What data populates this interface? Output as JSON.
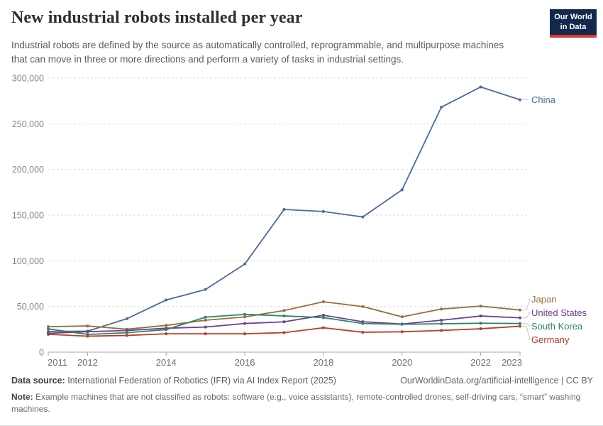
{
  "header": {
    "title": "New industrial robots installed per year",
    "subtitle": "Industrial robots are defined by the source as automatically controlled, reprogrammable, and multipurpose machines that can move in three or more directions and perform a variety of tasks in industrial settings.",
    "logo": {
      "line1": "Our World",
      "line2": "in Data",
      "bg_color": "#12294D",
      "accent_color": "#E0352B"
    }
  },
  "chart_data": {
    "type": "line",
    "title": "New industrial robots installed per year",
    "xlabel": "",
    "ylabel": "",
    "x": [
      2011,
      2012,
      2013,
      2014,
      2015,
      2016,
      2017,
      2018,
      2019,
      2020,
      2021,
      2022,
      2023
    ],
    "x_tick_labels": [
      2011,
      2012,
      2014,
      2016,
      2018,
      2020,
      2022,
      2023
    ],
    "ylim": [
      0,
      300000
    ],
    "ytick_step": 50000,
    "grid": "horizontal-dashed",
    "legend_position": "right-of-line-ends",
    "series": [
      {
        "name": "China",
        "color": "#4C6A9C",
        "values": [
          22600,
          23000,
          36600,
          57100,
          68600,
          96500,
          156200,
          154000,
          148000,
          177700,
          268200,
          290300,
          276300
        ]
      },
      {
        "name": "Japan",
        "color": "#996D39",
        "values": [
          27900,
          28700,
          25100,
          29300,
          35000,
          38600,
          45600,
          55200,
          49900,
          38700,
          47200,
          50400,
          46100
        ]
      },
      {
        "name": "United States",
        "color": "#6D3E91",
        "values": [
          20600,
          22400,
          23700,
          26200,
          27500,
          31400,
          33200,
          40400,
          33300,
          30800,
          35000,
          39600,
          37600
        ]
      },
      {
        "name": "South Korea",
        "color": "#2C8465",
        "values": [
          25500,
          19400,
          21300,
          24700,
          38300,
          41400,
          39700,
          37800,
          31400,
          30500,
          31100,
          31700,
          31400
        ]
      },
      {
        "name": "Germany",
        "color": "#BC3D22",
        "values": [
          19500,
          17500,
          18300,
          20100,
          20100,
          20100,
          21400,
          26700,
          21800,
          22300,
          23800,
          25600,
          28400
        ]
      }
    ]
  },
  "footer": {
    "source_label": "Data source:",
    "source_text": " International Federation of Robotics (IFR) via AI Index Report (2025)",
    "link_text": "OurWorldinData.org/artificial-intelligence | CC BY",
    "note_label": "Note:",
    "note_text": " Example machines that are not classified as robots: software (e.g., voice assistants), remote-controlled drones, self-driving cars, “smart” washing machines."
  }
}
